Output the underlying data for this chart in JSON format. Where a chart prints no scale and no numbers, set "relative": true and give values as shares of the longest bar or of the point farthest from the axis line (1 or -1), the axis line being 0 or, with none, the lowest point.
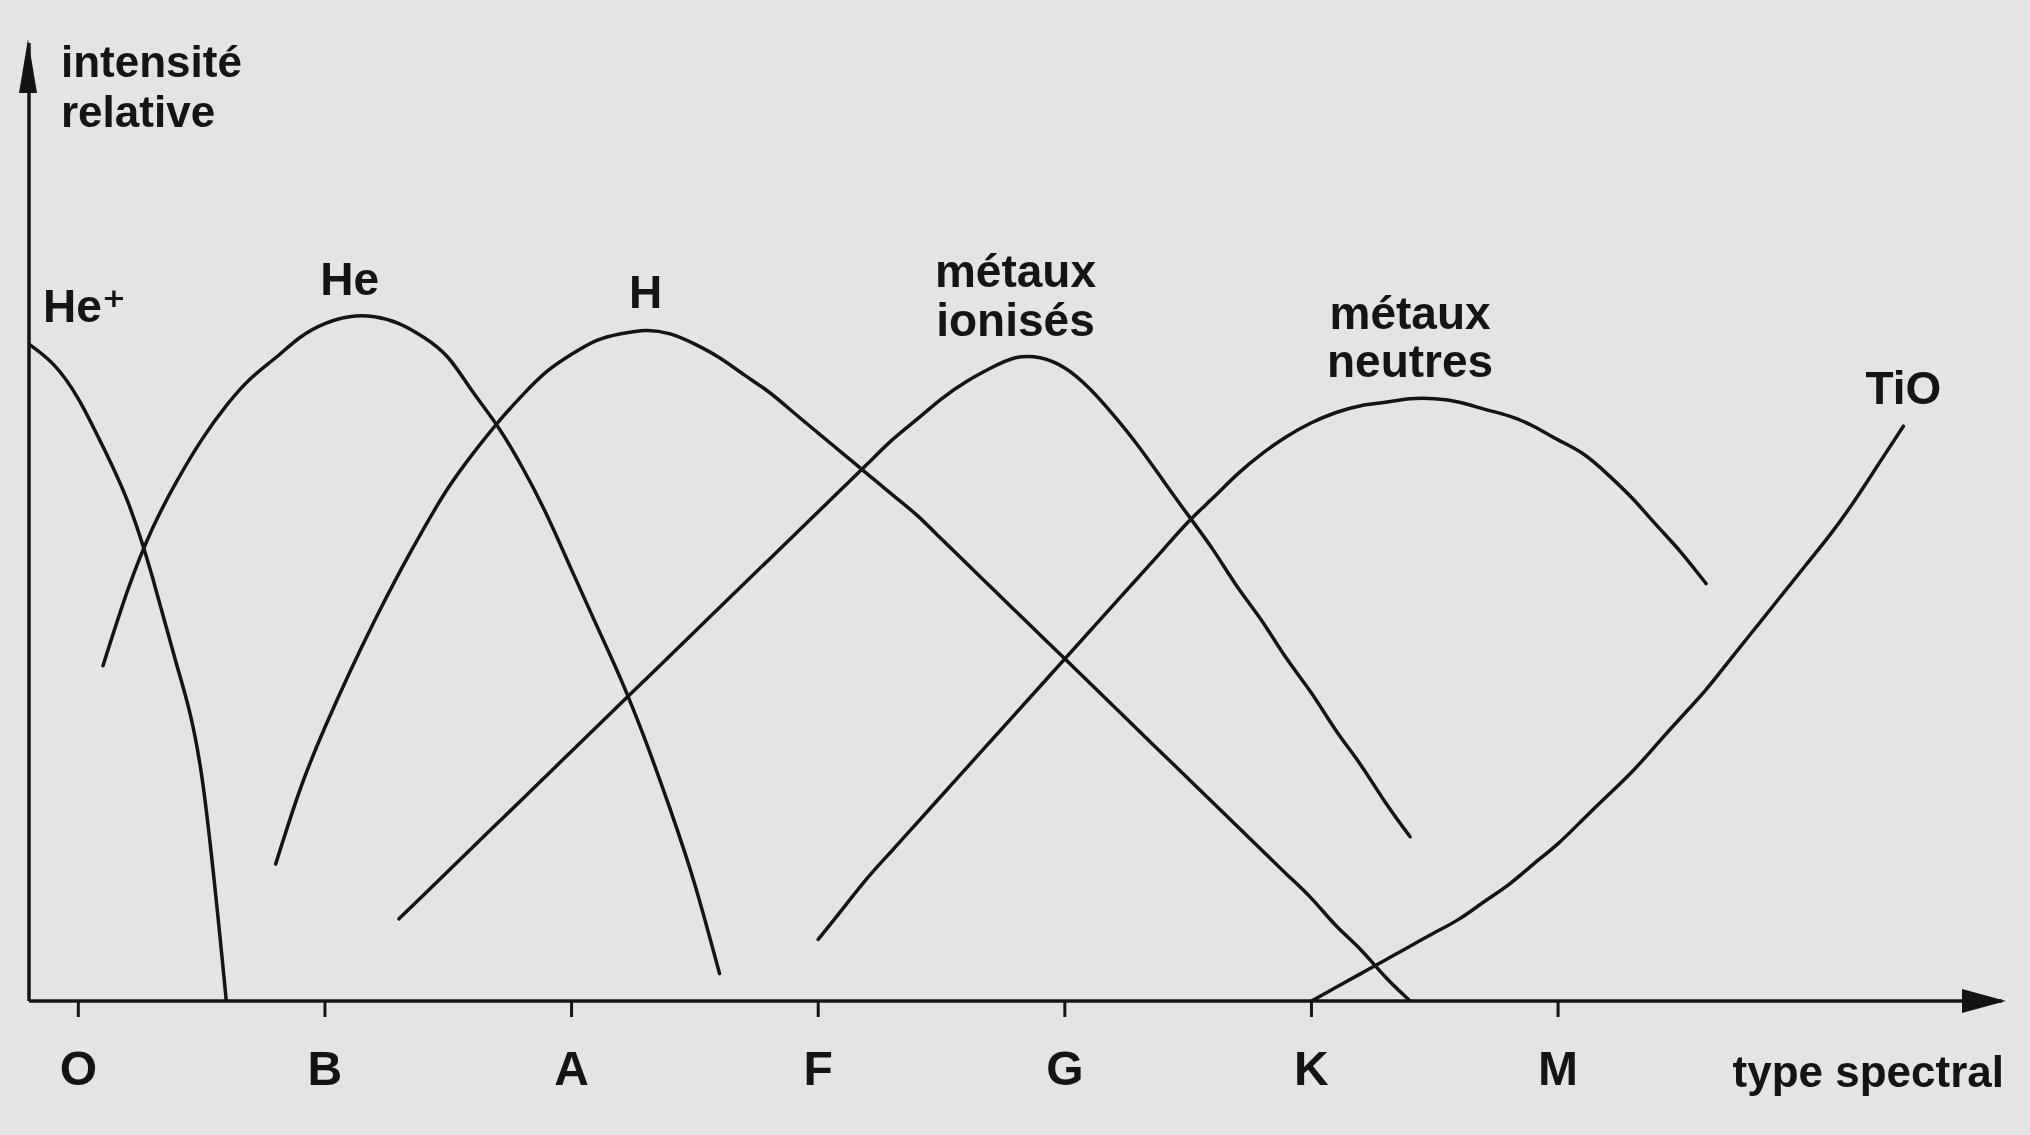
{
  "chart_data": {
    "type": "line",
    "relative": true,
    "xlabel": "type spectral",
    "ylabel": "intensité relative",
    "categories": [
      null,
      null,
      "O",
      null,
      null,
      null,
      null,
      null,
      null,
      null,
      null,
      null,
      "B",
      null,
      null,
      null,
      null,
      null,
      null,
      null,
      null,
      null,
      "A",
      null,
      null,
      null,
      null,
      null,
      null,
      null,
      null,
      null,
      "F",
      null,
      null,
      null,
      null,
      null,
      null,
      null,
      null,
      null,
      "G",
      null,
      null,
      null,
      null,
      null,
      null,
      null,
      null,
      null,
      "K",
      null,
      null,
      null,
      null,
      null,
      null,
      null,
      null,
      null,
      "M",
      null,
      null,
      null,
      null,
      null,
      null,
      null,
      null,
      null,
      null,
      null,
      null,
      null,
      null,
      null,
      null,
      null,
      null
    ],
    "series": [
      {
        "name": "He⁺",
        "color": "#141414",
        "values": [
          0.96,
          0.93,
          0.88,
          0.81,
          0.73,
          0.62,
          0.49,
          0.33,
          0,
          null,
          null,
          null,
          null,
          null,
          null,
          null,
          null,
          null,
          null,
          null,
          null,
          null,
          null,
          null,
          null,
          null,
          null,
          null,
          null,
          null,
          null,
          null,
          null,
          null,
          null,
          null,
          null,
          null,
          null,
          null,
          null,
          null,
          null,
          null,
          null,
          null,
          null,
          null,
          null,
          null,
          null,
          null,
          null,
          null,
          null,
          null,
          null,
          null,
          null,
          null,
          null,
          null,
          null,
          null,
          null,
          null,
          null,
          null,
          null,
          null,
          null,
          null,
          null,
          null,
          null,
          null,
          null,
          null,
          null,
          null,
          null
        ]
      },
      {
        "name": "He",
        "color": "#141414",
        "values": [
          null,
          null,
          null,
          0.49,
          0.6,
          0.69,
          0.76,
          0.82,
          0.87,
          0.91,
          0.94,
          0.97,
          0.99,
          1,
          1,
          0.99,
          0.97,
          0.94,
          0.89,
          0.84,
          0.78,
          0.71,
          0.63,
          0.55,
          0.47,
          0.38,
          0.28,
          0.17,
          0.04,
          null,
          null,
          null,
          null,
          null,
          null,
          null,
          null,
          null,
          null,
          null,
          null,
          null,
          null,
          null,
          null,
          null,
          null,
          null,
          null,
          null,
          null,
          null,
          null,
          null,
          null,
          null,
          null,
          null,
          null,
          null,
          null,
          null,
          null,
          null,
          null,
          null,
          null,
          null,
          null,
          null,
          null,
          null,
          null,
          null,
          null,
          null,
          null,
          null,
          null,
          null,
          null
        ]
      },
      {
        "name": "H",
        "color": "#141414",
        "values": [
          null,
          null,
          null,
          null,
          null,
          null,
          null,
          null,
          null,
          null,
          0.2,
          0.31,
          0.4,
          0.48,
          0.555,
          0.625,
          0.69,
          0.75,
          0.8,
          0.845,
          0.885,
          0.92,
          0.945,
          0.965,
          0.975,
          0.98,
          0.975,
          0.96,
          0.94,
          0.915,
          0.89,
          0.86,
          0.83,
          0.8,
          0.77,
          0.74,
          0.71,
          0.675,
          0.64,
          0.605,
          0.57,
          0.535,
          0.5,
          0.465,
          0.43,
          0.395,
          0.36,
          0.325,
          0.29,
          0.255,
          0.22,
          0.185,
          0.15,
          0.11,
          0.075,
          0.035,
          0,
          null,
          null,
          null,
          null,
          null,
          null,
          null,
          null,
          null,
          null,
          null,
          null,
          null,
          null,
          null,
          null,
          null,
          null,
          null,
          null,
          null,
          null,
          null,
          null
        ]
      },
      {
        "name": "métaux ionisés",
        "color": "#141414",
        "values": [
          null,
          null,
          null,
          null,
          null,
          null,
          null,
          null,
          null,
          null,
          null,
          null,
          null,
          null,
          null,
          0.12,
          0.155,
          0.19,
          0.225,
          0.26,
          0.295,
          0.33,
          0.365,
          0.4,
          0.435,
          0.47,
          0.505,
          0.54,
          0.575,
          0.61,
          0.645,
          0.68,
          0.715,
          0.75,
          0.785,
          0.82,
          0.85,
          0.88,
          0.905,
          0.925,
          0.94,
          0.94,
          0.925,
          0.895,
          0.855,
          0.81,
          0.76,
          0.71,
          0.66,
          0.605,
          0.555,
          0.5,
          0.45,
          0.395,
          0.345,
          0.29,
          0.24,
          null,
          null,
          null,
          null,
          null,
          null,
          null,
          null,
          null,
          null,
          null,
          null,
          null,
          null,
          null,
          null,
          null,
          null,
          null,
          null,
          null,
          null,
          null,
          null
        ]
      },
      {
        "name": "métaux neutres",
        "color": "#141414",
        "values": [
          null,
          null,
          null,
          null,
          null,
          null,
          null,
          null,
          null,
          null,
          null,
          null,
          null,
          null,
          null,
          null,
          null,
          null,
          null,
          null,
          null,
          null,
          null,
          null,
          null,
          null,
          null,
          null,
          null,
          null,
          null,
          null,
          0.09,
          0.135,
          0.18,
          0.22,
          0.26,
          0.3,
          0.34,
          0.38,
          0.42,
          0.46,
          0.5,
          0.54,
          0.58,
          0.62,
          0.66,
          0.7,
          0.735,
          0.77,
          0.8,
          0.825,
          0.845,
          0.86,
          0.87,
          0.875,
          0.88,
          0.88,
          0.875,
          0.865,
          0.855,
          0.84,
          0.82,
          0.8,
          0.77,
          0.735,
          0.695,
          0.655,
          0.61,
          null,
          null,
          null,
          null,
          null,
          null,
          null,
          null,
          null,
          null,
          null,
          null
        ]
      },
      {
        "name": "TiO",
        "color": "#141414",
        "values": [
          null,
          null,
          null,
          null,
          null,
          null,
          null,
          null,
          null,
          null,
          null,
          null,
          null,
          null,
          null,
          null,
          null,
          null,
          null,
          null,
          null,
          null,
          null,
          null,
          null,
          null,
          null,
          null,
          null,
          null,
          null,
          null,
          null,
          null,
          null,
          null,
          null,
          null,
          null,
          null,
          null,
          null,
          null,
          null,
          null,
          null,
          null,
          null,
          null,
          null,
          null,
          null,
          0,
          0.02,
          0.04,
          0.06,
          0.08,
          0.1,
          0.12,
          0.145,
          0.17,
          0.2,
          0.23,
          0.265,
          0.3,
          0.335,
          0.375,
          0.415,
          0.455,
          0.5,
          0.545,
          0.59,
          0.635,
          0.68,
          0.73,
          0.785,
          0.84,
          null,
          null,
          null,
          null
        ]
      }
    ]
  }
}
